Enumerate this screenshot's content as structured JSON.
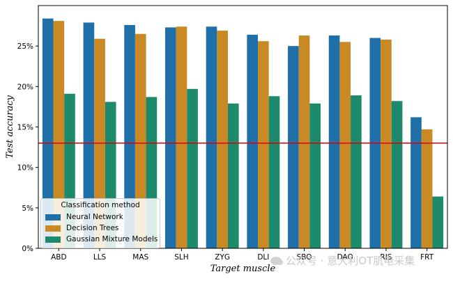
{
  "chart_data": {
    "type": "bar",
    "xlabel": "Target muscle",
    "ylabel": "Test accuracy",
    "categories": [
      "ABD",
      "LLS",
      "MAS",
      "SLH",
      "ZYG",
      "DLI",
      "SBO",
      "DAO",
      "RIS",
      "FRT"
    ],
    "series": [
      {
        "name": "Neural Network",
        "color": "#1f6fa8",
        "values": [
          28.4,
          27.9,
          27.6,
          27.3,
          27.4,
          26.4,
          25.0,
          26.3,
          26.0,
          16.2
        ]
      },
      {
        "name": "Decision Trees",
        "color": "#c98a26",
        "values": [
          28.1,
          25.9,
          26.5,
          27.4,
          26.9,
          25.6,
          26.3,
          25.5,
          25.8,
          14.7
        ]
      },
      {
        "name": "Gaussian Mixture Models",
        "color": "#1c8a6b",
        "values": [
          19.1,
          18.1,
          18.7,
          19.7,
          17.9,
          18.8,
          17.9,
          18.9,
          18.2,
          6.4
        ]
      }
    ],
    "ylim": [
      0,
      30
    ],
    "yticks": [
      0,
      5,
      10,
      15,
      20,
      25
    ],
    "ytick_labels": [
      "0%",
      "5%",
      "10%",
      "15%",
      "20%",
      "25%"
    ],
    "reference_line": {
      "value": 13.0,
      "color": "#e00000"
    },
    "legend": {
      "title": "Classification method",
      "placement": "lower-left"
    },
    "grid": false
  },
  "watermark": {
    "text": "公众号 · 意大利OT肌电采集"
  }
}
